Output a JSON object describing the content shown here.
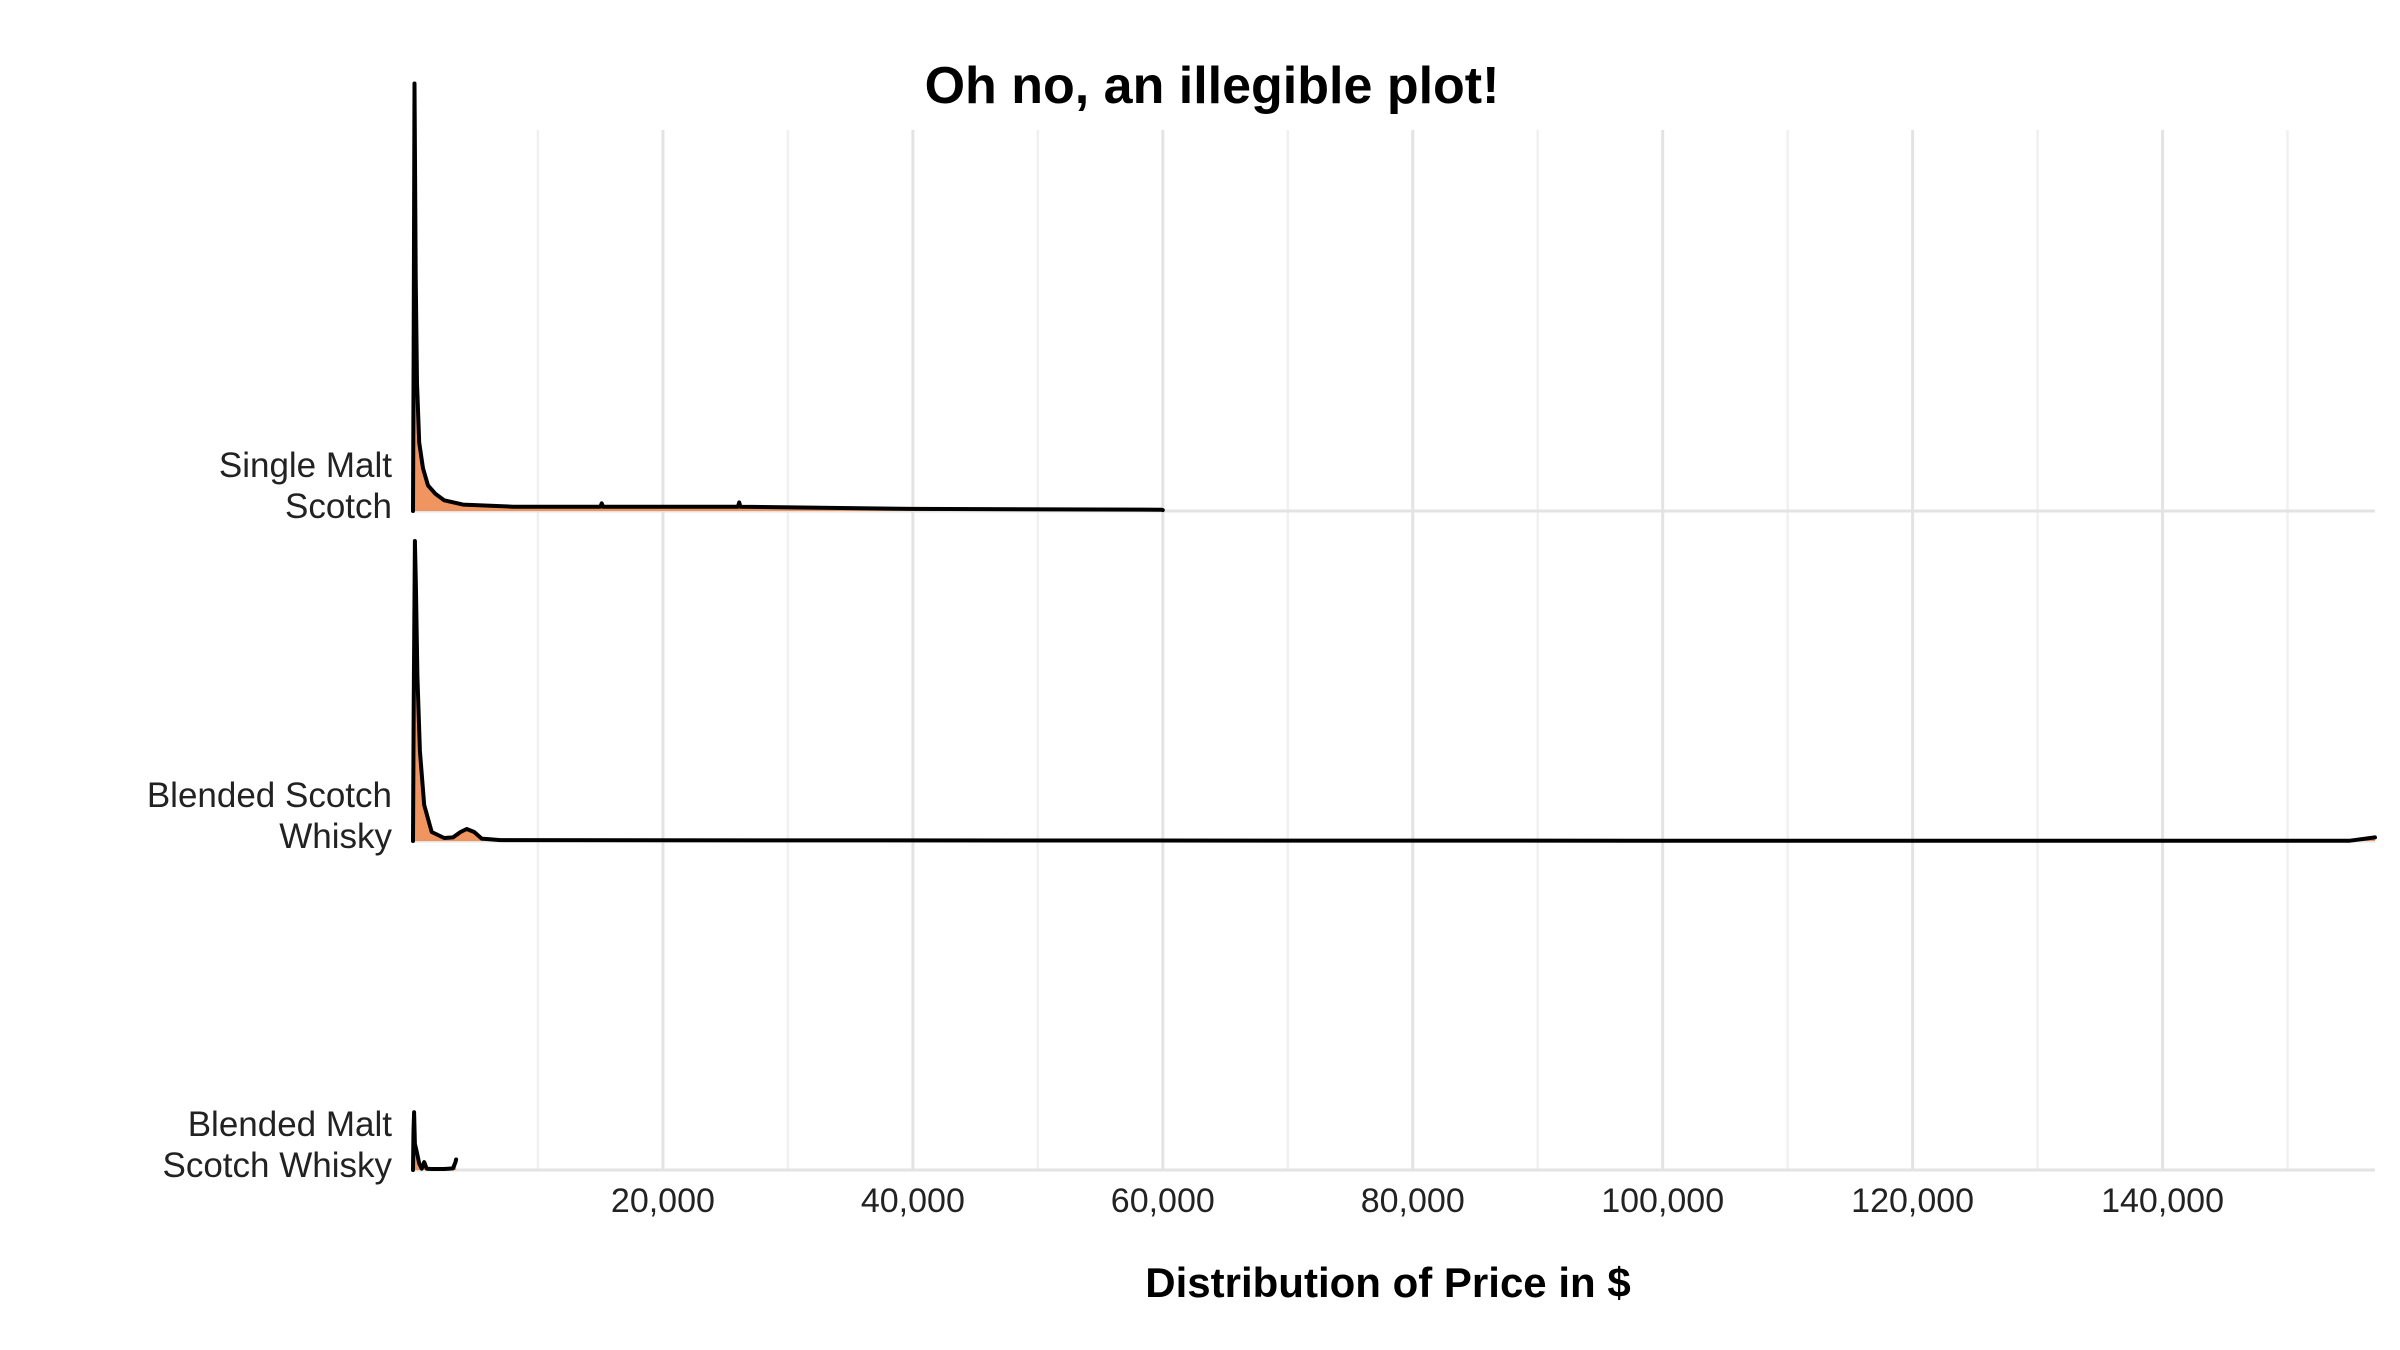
{
  "chart_data": {
    "type": "ridgeline",
    "title": "Oh no, an illegible plot!",
    "xlabel": "Distribution of Price in $",
    "ylabel": "",
    "xlim": [
      0,
      157000
    ],
    "x_major_ticks": [
      20000,
      40000,
      60000,
      80000,
      100000,
      120000,
      140000
    ],
    "x_tick_labels": [
      "20,000",
      "40,000",
      "60,000",
      "80,000",
      "100,000",
      "120,000",
      "140,000"
    ],
    "x_minor_ticks": [
      10000,
      30000,
      50000,
      70000,
      90000,
      110000,
      130000,
      150000
    ],
    "grid": true,
    "fill_color": "#ee8a4f",
    "line_color": "#000000",
    "categories": [
      "Single Malt Scotch",
      "Blended Scotch Whisky",
      "Blended Malt Scotch Whisky"
    ],
    "category_labels": [
      [
        "Single Malt",
        "Scotch"
      ],
      [
        "Blended Scotch",
        "Whisky"
      ],
      [
        "Blended Malt",
        "Scotch Whisky"
      ]
    ],
    "series": [
      {
        "name": "Single Malt Scotch",
        "max_density": 1.14,
        "points": [
          [
            0,
            0
          ],
          [
            50,
            0.35
          ],
          [
            120,
            1.0
          ],
          [
            160,
            0.82
          ],
          [
            220,
            0.55
          ],
          [
            320,
            0.3
          ],
          [
            500,
            0.16
          ],
          [
            800,
            0.1
          ],
          [
            1200,
            0.06
          ],
          [
            1800,
            0.04
          ],
          [
            2500,
            0.025
          ],
          [
            4000,
            0.015
          ],
          [
            8000,
            0.01
          ],
          [
            15000,
            0.01
          ],
          [
            15100,
            0.018
          ],
          [
            15200,
            0.01
          ],
          [
            26000,
            0.01
          ],
          [
            26100,
            0.02
          ],
          [
            26200,
            0.01
          ],
          [
            40000,
            0.005
          ],
          [
            59900,
            0.003
          ],
          [
            60000,
            0.002
          ]
        ]
      },
      {
        "name": "Blended Scotch Whisky",
        "max_density": 0.8,
        "points": [
          [
            0,
            0
          ],
          [
            60,
            0.45
          ],
          [
            150,
            1.0
          ],
          [
            230,
            0.85
          ],
          [
            350,
            0.55
          ],
          [
            550,
            0.3
          ],
          [
            900,
            0.12
          ],
          [
            1500,
            0.03
          ],
          [
            2500,
            0.01
          ],
          [
            3200,
            0.012
          ],
          [
            3800,
            0.03
          ],
          [
            4300,
            0.04
          ],
          [
            4900,
            0.03
          ],
          [
            5500,
            0.008
          ],
          [
            7000,
            0.003
          ],
          [
            30000,
            0.002
          ],
          [
            100000,
            0.001
          ],
          [
            155000,
            0.001
          ],
          [
            157000,
            0.012
          ]
        ]
      },
      {
        "name": "Blended Malt Scotch Whisky",
        "max_density": 0.7,
        "points": [
          [
            0,
            0
          ],
          [
            40,
            0.15
          ],
          [
            90,
            0.22
          ],
          [
            150,
            0.1
          ],
          [
            300,
            0.07
          ],
          [
            500,
            0.025
          ],
          [
            700,
            0.005
          ],
          [
            900,
            0.03
          ],
          [
            1100,
            0.005
          ],
          [
            1500,
            0.004
          ],
          [
            2500,
            0.004
          ],
          [
            3200,
            0.006
          ],
          [
            3400,
            0.03
          ],
          [
            3450,
            0.04
          ]
        ]
      }
    ]
  }
}
